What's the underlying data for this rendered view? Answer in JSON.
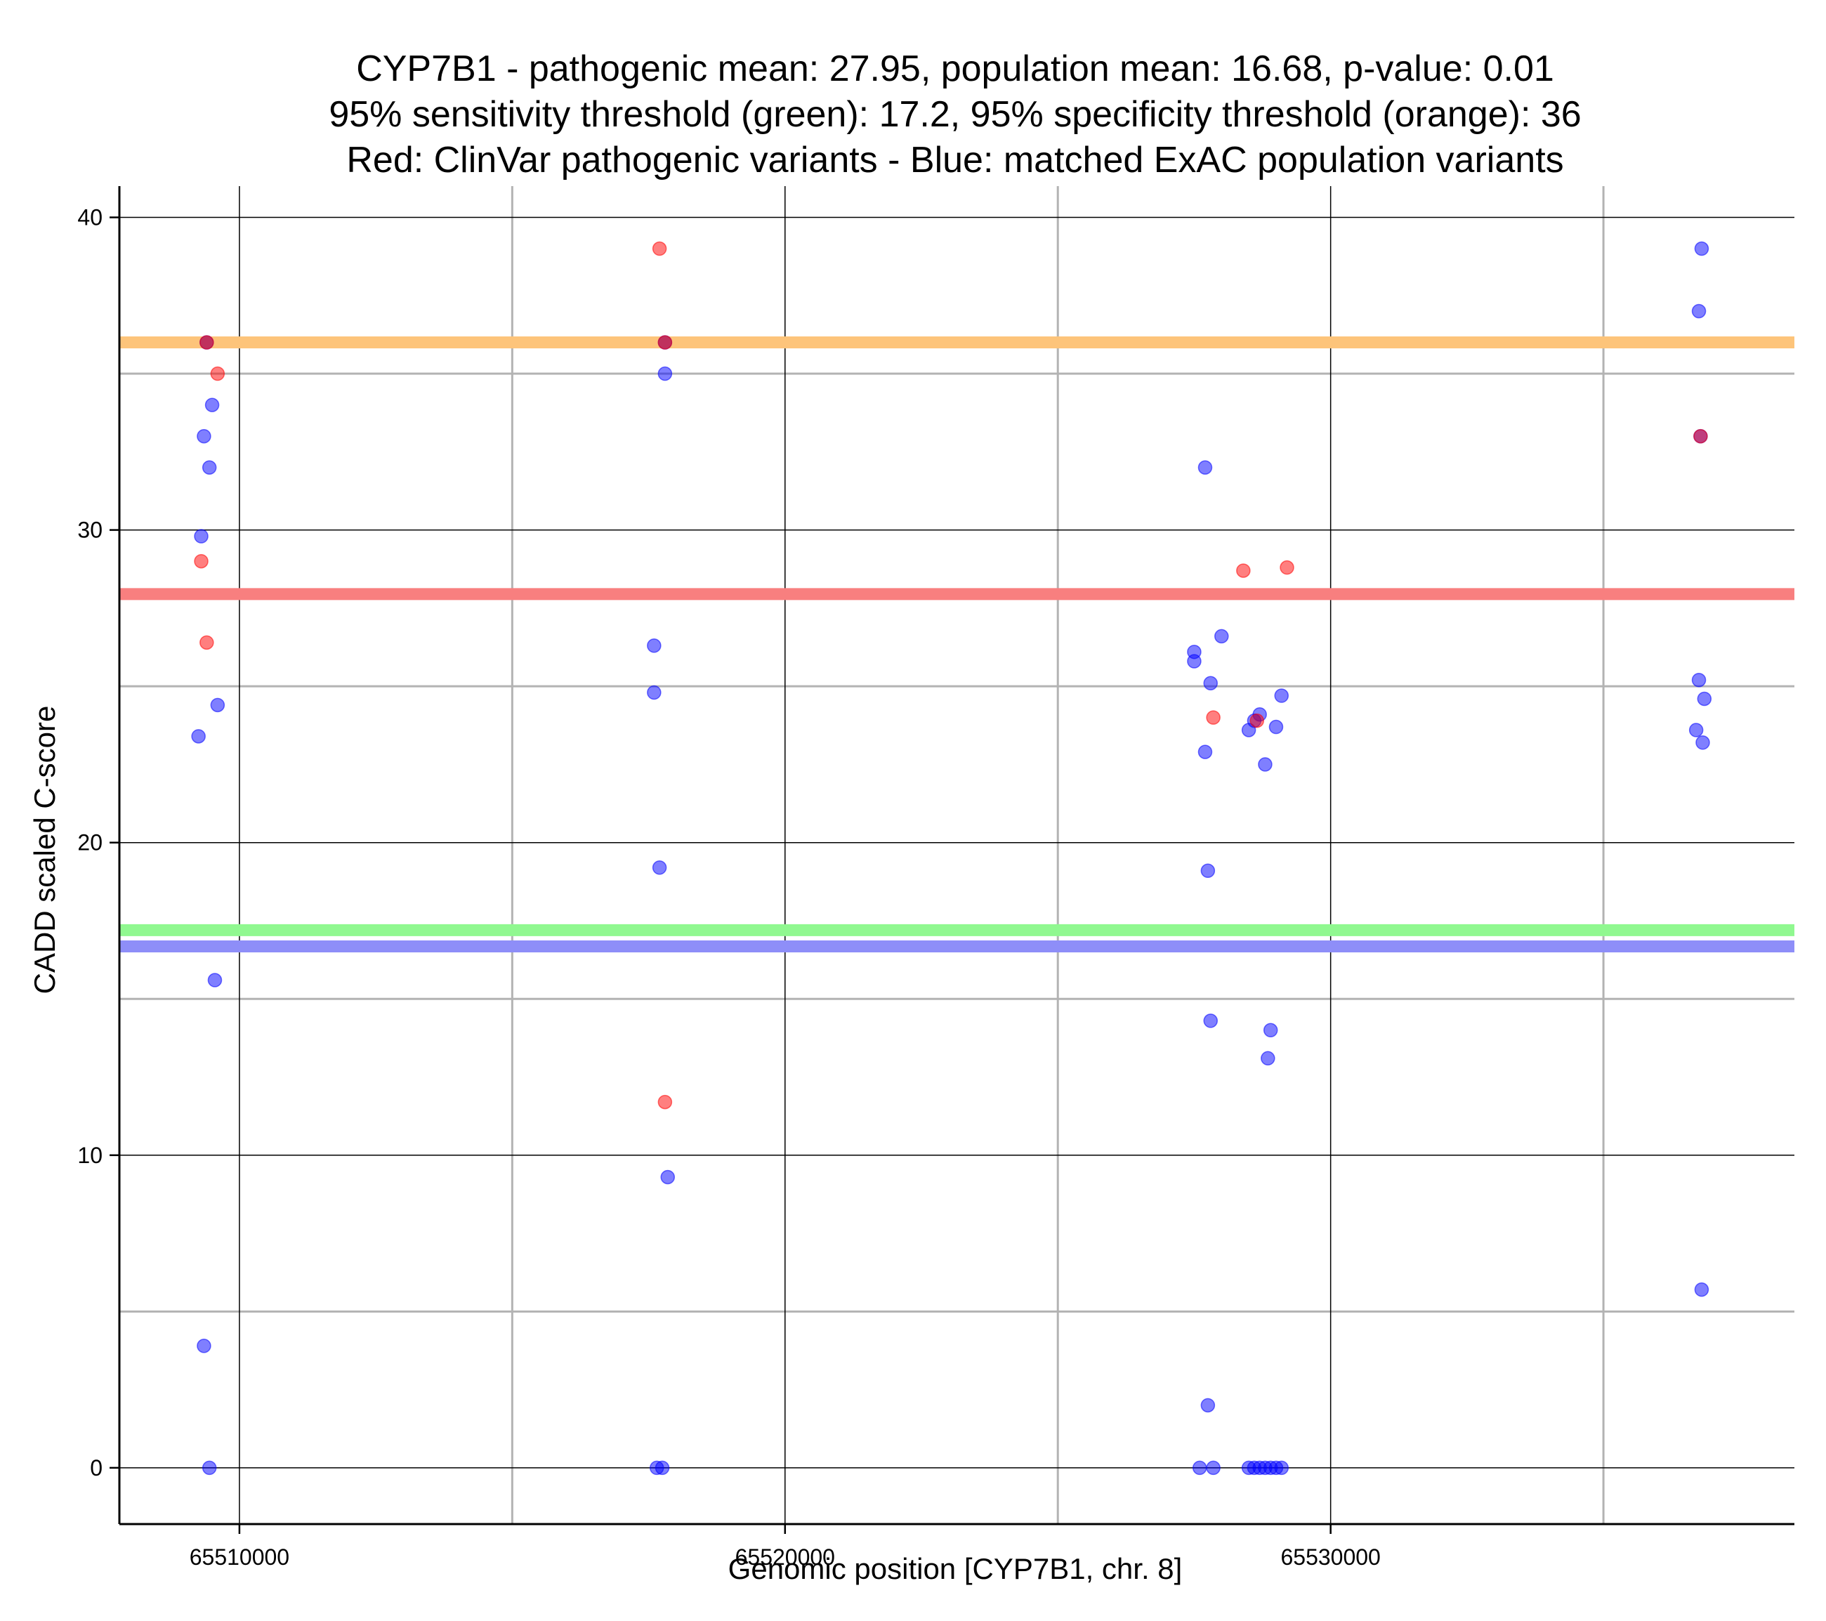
{
  "chart_data": {
    "type": "scatter",
    "title_lines": [
      "CYP7B1 - pathogenic mean: 27.95, population mean: 16.68, p-value: 0.01",
      "95% sensitivity threshold (green): 17.2, 95% specificity threshold (orange): 36",
      "Red: ClinVar pathogenic variants - Blue: matched ExAC population variants"
    ],
    "xlabel": "Genomic position [CYP7B1, chr. 8]",
    "ylabel": "CADD scaled C-score",
    "xlim": [
      65507800,
      65538500
    ],
    "ylim": [
      -1.8,
      41
    ],
    "x_ticks": [
      65510000,
      65520000,
      65530000
    ],
    "x_minor_grid": [
      65515000,
      65525000,
      65535000
    ],
    "y_ticks": [
      0,
      10,
      20,
      30,
      40
    ],
    "y_minor_grid": [
      5,
      15,
      25,
      35
    ],
    "grid": true,
    "horizontal_lines": [
      {
        "name": "specificity threshold",
        "y": 36,
        "color": "#FDC47A"
      },
      {
        "name": "pathogenic mean",
        "y": 27.95,
        "color": "#F87F7F"
      },
      {
        "name": "sensitivity threshold",
        "y": 17.2,
        "color": "#90F890"
      },
      {
        "name": "population mean",
        "y": 16.68,
        "color": "#8E8EF8"
      }
    ],
    "series": [
      {
        "key": "population",
        "color": "#0000FF",
        "points": [
          [
            65509400,
            36
          ],
          [
            65509500,
            34
          ],
          [
            65509350,
            33
          ],
          [
            65509450,
            32
          ],
          [
            65509300,
            29.8
          ],
          [
            65509600,
            24.4
          ],
          [
            65509250,
            23.4
          ],
          [
            65509550,
            15.6
          ],
          [
            65509350,
            3.9
          ],
          [
            65509450,
            0
          ],
          [
            65517800,
            36
          ],
          [
            65517800,
            35
          ],
          [
            65517600,
            26.3
          ],
          [
            65517600,
            24.8
          ],
          [
            65517700,
            19.2
          ],
          [
            65517850,
            9.3
          ],
          [
            65517650,
            0
          ],
          [
            65517750,
            0
          ],
          [
            65527700,
            32
          ],
          [
            65527500,
            26.1
          ],
          [
            65527500,
            25.8
          ],
          [
            65528000,
            26.6
          ],
          [
            65527800,
            25.1
          ],
          [
            65529100,
            24.7
          ],
          [
            65528700,
            24.1
          ],
          [
            65528600,
            23.9
          ],
          [
            65528500,
            23.6
          ],
          [
            65529000,
            23.7
          ],
          [
            65527700,
            22.9
          ],
          [
            65528800,
            22.5
          ],
          [
            65527750,
            19.1
          ],
          [
            65527800,
            14.3
          ],
          [
            65528900,
            14.0
          ],
          [
            65528850,
            13.1
          ],
          [
            65527750,
            2.0
          ],
          [
            65527600,
            0
          ],
          [
            65527850,
            0
          ],
          [
            65528500,
            0
          ],
          [
            65528600,
            0
          ],
          [
            65528700,
            0
          ],
          [
            65528800,
            0
          ],
          [
            65528900,
            0
          ],
          [
            65529000,
            0
          ],
          [
            65529100,
            0
          ],
          [
            65536800,
            39
          ],
          [
            65536750,
            37
          ],
          [
            65536780,
            33
          ],
          [
            65536750,
            25.2
          ],
          [
            65536850,
            24.6
          ],
          [
            65536700,
            23.6
          ],
          [
            65536820,
            23.2
          ],
          [
            65536800,
            5.7
          ]
        ]
      },
      {
        "key": "pathogenic",
        "color": "#FF0000",
        "points": [
          [
            65509400,
            36
          ],
          [
            65509600,
            35
          ],
          [
            65509300,
            29
          ],
          [
            65509400,
            26.4
          ],
          [
            65517700,
            39
          ],
          [
            65517800,
            36
          ],
          [
            65517800,
            11.7
          ],
          [
            65528400,
            28.7
          ],
          [
            65529200,
            28.8
          ],
          [
            65527850,
            24.0
          ],
          [
            65528650,
            23.9
          ],
          [
            65536780,
            33
          ]
        ]
      }
    ]
  }
}
